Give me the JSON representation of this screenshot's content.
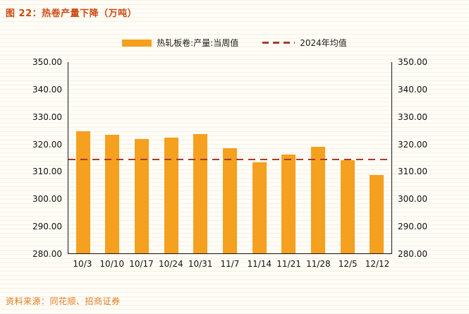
{
  "title": "图 22：热卷产量下降（万吨）",
  "legend": {
    "series1": "热轧板卷:产量:当周值",
    "series2": "2024年均值"
  },
  "footer": {
    "source": "资料来源：同花顺、招商证券"
  },
  "colors": {
    "bar": "#F5A01E",
    "avg_line": "#A93B2C",
    "title": "#CC4A12",
    "source": "#DE7C1F",
    "axis": "#1a1a1a"
  },
  "chart_data": {
    "type": "bar",
    "title": "图 22：热卷产量下降（万吨）",
    "categories": [
      "10/3",
      "10/10",
      "10/17",
      "10/24",
      "10/31",
      "11/7",
      "11/14",
      "11/21",
      "11/28",
      "12/5",
      "12/12"
    ],
    "series": [
      {
        "name": "热轧板卷:产量:当周值",
        "type": "bar",
        "values": [
          324.8,
          323.5,
          321.9,
          322.3,
          323.7,
          318.4,
          313.4,
          316.1,
          319.0,
          314.1,
          308.7
        ]
      },
      {
        "name": "2024年均值",
        "type": "dashed-line",
        "value": 314.3
      }
    ],
    "xlabel": "",
    "ylabel": "",
    "ylim": [
      280,
      350
    ],
    "ytick_step": 10,
    "ytick_decimals": 2,
    "y_axis_both_sides": true,
    "grid": false,
    "legend_position": "top-center"
  }
}
